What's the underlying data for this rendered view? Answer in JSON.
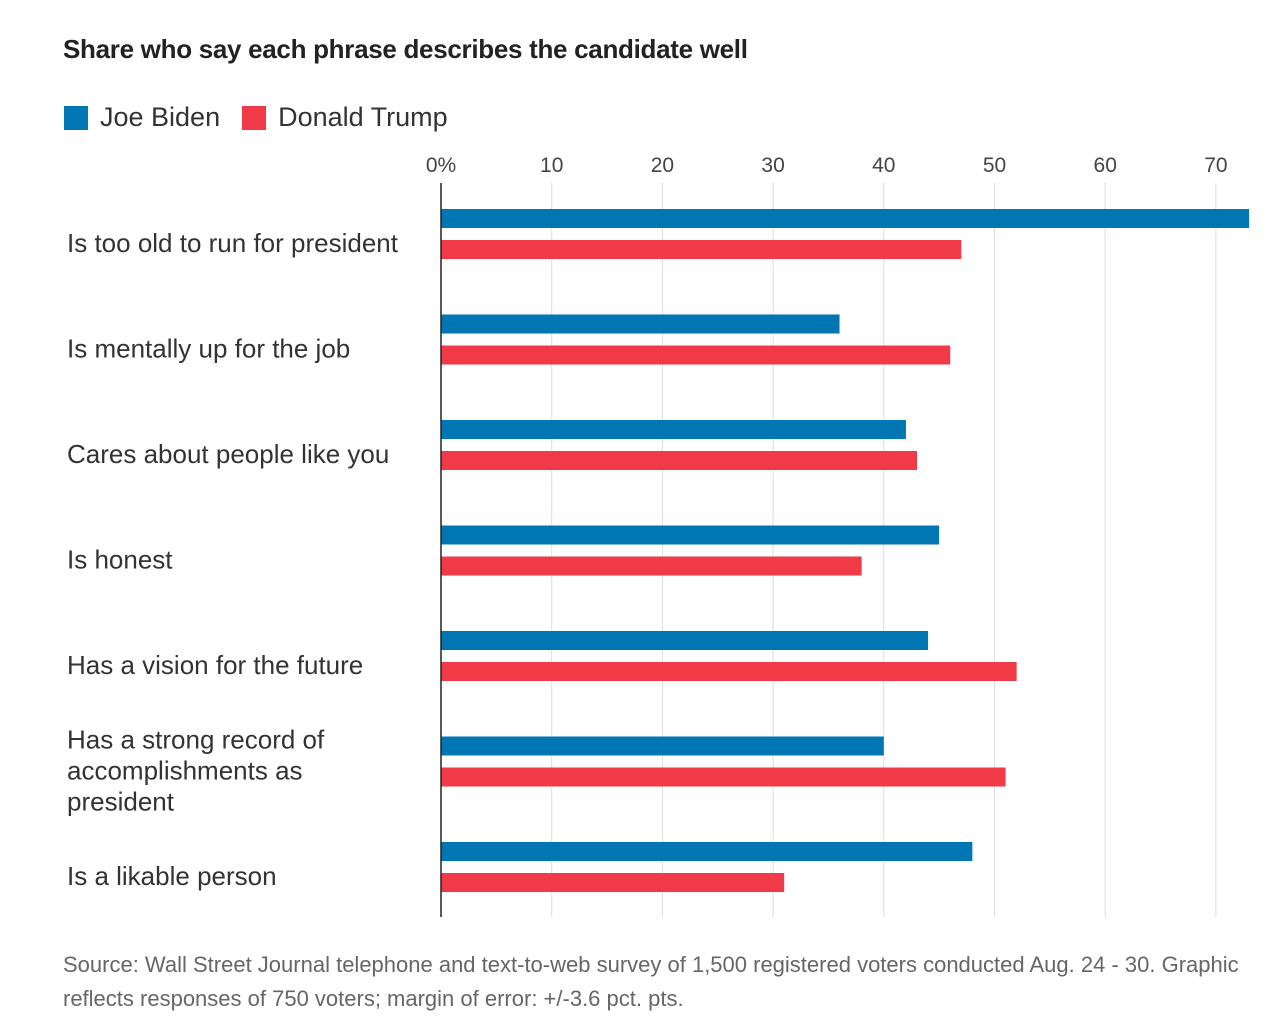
{
  "chart_data": {
    "type": "bar",
    "orientation": "horizontal",
    "title": "Share who say each phrase describes the candidate well",
    "categories": [
      [
        "Is too old to run for president"
      ],
      [
        "Is mentally up for the job"
      ],
      [
        "Cares about people like you"
      ],
      [
        "Is honest"
      ],
      [
        "Has a vision for the future"
      ],
      [
        "Has a strong record of",
        "accomplishments as",
        "president"
      ],
      [
        "Is a likable person"
      ]
    ],
    "series": [
      {
        "name": "Joe Biden",
        "color": "#0077b3",
        "values": [
          73,
          36,
          42,
          45,
          44,
          40,
          48
        ]
      },
      {
        "name": "Donald Trump",
        "color": "#f03a47",
        "values": [
          47,
          46,
          43,
          38,
          52,
          51,
          31
        ]
      }
    ],
    "xlim": [
      0,
      73
    ],
    "ticks": [
      0,
      10,
      20,
      30,
      40,
      50,
      60,
      70
    ],
    "tick_labels": [
      "0%",
      "10",
      "20",
      "30",
      "40",
      "50",
      "60",
      "70"
    ],
    "grid": true,
    "legend_position": "top-left",
    "source": "Source: Wall Street Journal telephone and text-to-web survey of 1,500 registered voters conducted Aug. 24 - 30. Graphic reflects responses of 750 voters; margin of error: +/-3.6 pct. pts."
  }
}
